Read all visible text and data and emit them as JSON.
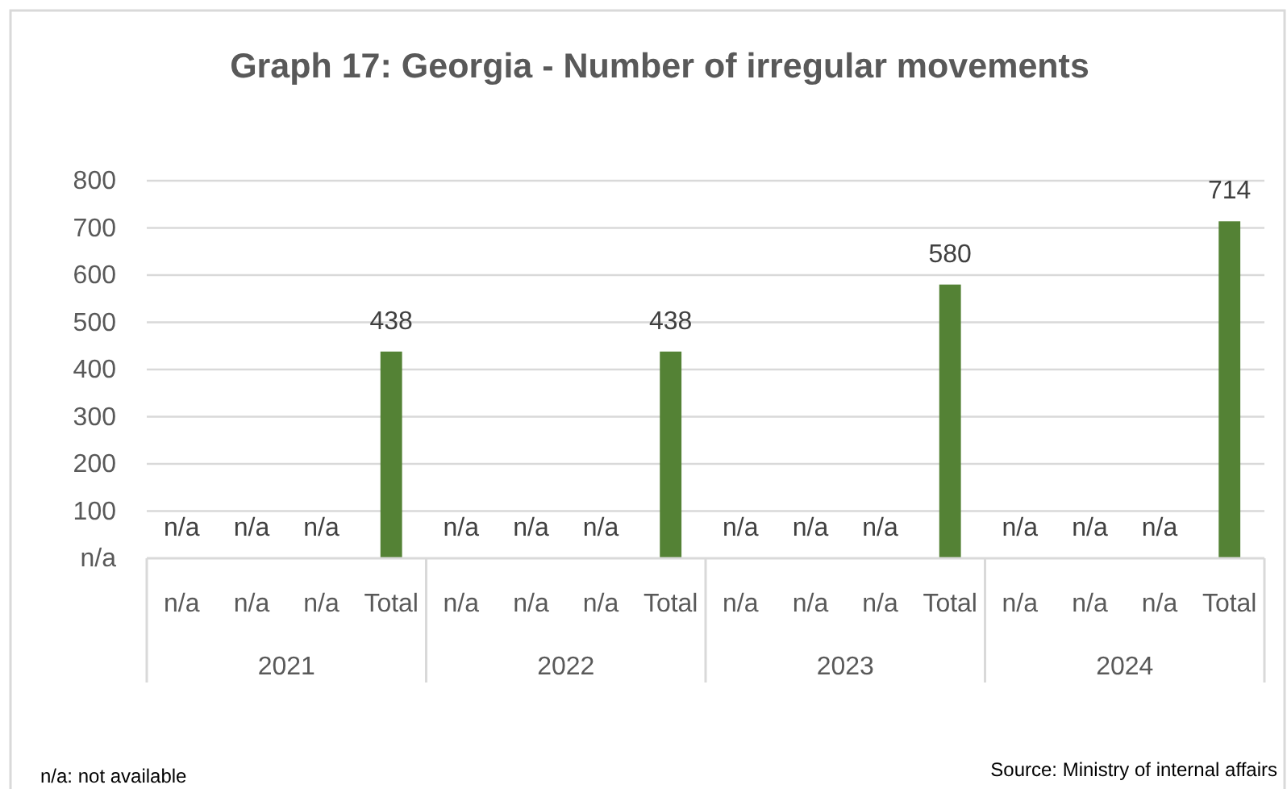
{
  "chart_data": {
    "type": "bar",
    "title": "Graph 17: Georgia - Number of irregular movements",
    "categories": [
      "n/a",
      "n/a",
      "n/a",
      "Total",
      "n/a",
      "n/a",
      "n/a",
      "Total",
      "n/a",
      "n/a",
      "n/a",
      "Total",
      "n/a",
      "n/a",
      "n/a",
      "Total"
    ],
    "values": [
      null,
      null,
      null,
      438,
      null,
      null,
      null,
      438,
      null,
      null,
      null,
      580,
      null,
      null,
      null,
      714
    ],
    "value_labels": [
      "n/a",
      "n/a",
      "n/a",
      "438",
      "n/a",
      "n/a",
      "n/a",
      "438",
      "n/a",
      "n/a",
      "n/a",
      "580",
      "n/a",
      "n/a",
      "n/a",
      "714"
    ],
    "color": "#548235",
    "ylim": [
      0,
      800
    ],
    "yticks": [
      {
        "value": 0,
        "label": "n/a"
      },
      100,
      200,
      300,
      400,
      500,
      600,
      700,
      800
    ],
    "grid": "y",
    "annotations": [
      "2021",
      "2022",
      "2023",
      "2024",
      "n/a: not available",
      "Source: Ministry of internal affairs"
    ]
  }
}
